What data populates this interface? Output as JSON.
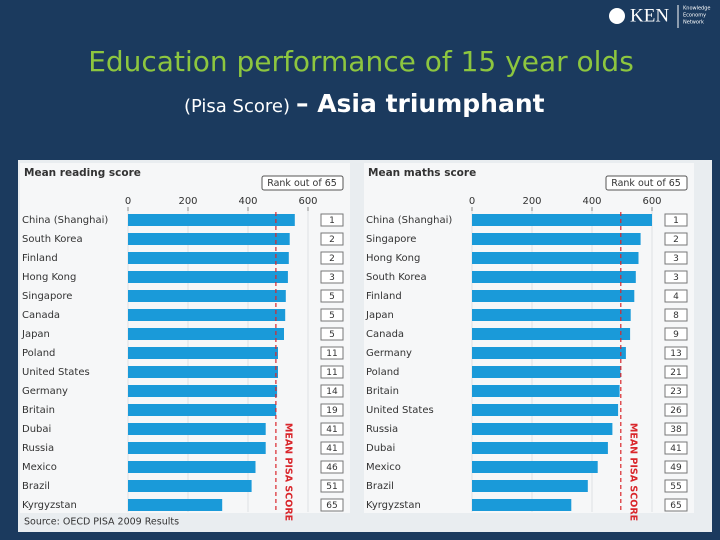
{
  "slide": {
    "title": "Education performance of 15 year olds",
    "subtitle_small": "(Pisa Score)",
    "subtitle_big": "– Asia triumphant",
    "logo": "KEN",
    "logo_sub": [
      "Knowledge",
      "Economy",
      "Network"
    ],
    "source": "Source: OECD PISA 2009 Results"
  },
  "chart_data": [
    {
      "type": "bar",
      "orientation": "horizontal",
      "title": "Mean reading score",
      "rank_header": "Rank out of 65",
      "annotation": "MEAN PISA SCORE",
      "mean_line": 493,
      "color": "#1a9ad9",
      "categories": [
        "China (Shanghai)",
        "South Korea",
        "Finland",
        "Hong Kong",
        "Singapore",
        "Canada",
        "Japan",
        "Poland",
        "United States",
        "Germany",
        "Britain",
        "Dubai",
        "Russia",
        "Mexico",
        "Brazil",
        "Kyrgyzstan"
      ],
      "values": [
        556,
        539,
        536,
        533,
        526,
        524,
        520,
        500,
        500,
        497,
        494,
        459,
        459,
        425,
        412,
        314
      ],
      "ranks": [
        1,
        2,
        2,
        3,
        5,
        5,
        5,
        11,
        11,
        14,
        19,
        41,
        41,
        46,
        51,
        65
      ],
      "xlim": [
        0,
        600
      ],
      "xticks": [
        0,
        200,
        400,
        600
      ]
    },
    {
      "type": "bar",
      "orientation": "horizontal",
      "title": "Mean maths score",
      "rank_header": "Rank out of 65",
      "annotation": "MEAN PISA SCORE",
      "mean_line": 496,
      "color": "#1a9ad9",
      "categories": [
        "China (Shanghai)",
        "Singapore",
        "Hong Kong",
        "South Korea",
        "Finland",
        "Japan",
        "Canada",
        "Germany",
        "Poland",
        "Britain",
        "United States",
        "Russia",
        "Dubai",
        "Mexico",
        "Brazil",
        "Kyrgyzstan"
      ],
      "values": [
        600,
        562,
        555,
        546,
        541,
        529,
        527,
        513,
        495,
        492,
        487,
        468,
        453,
        419,
        386,
        331
      ],
      "ranks": [
        1,
        2,
        3,
        3,
        4,
        8,
        9,
        13,
        21,
        23,
        26,
        38,
        41,
        49,
        55,
        65
      ],
      "xlim": [
        0,
        600
      ],
      "xticks": [
        0,
        200,
        400,
        600
      ]
    }
  ]
}
